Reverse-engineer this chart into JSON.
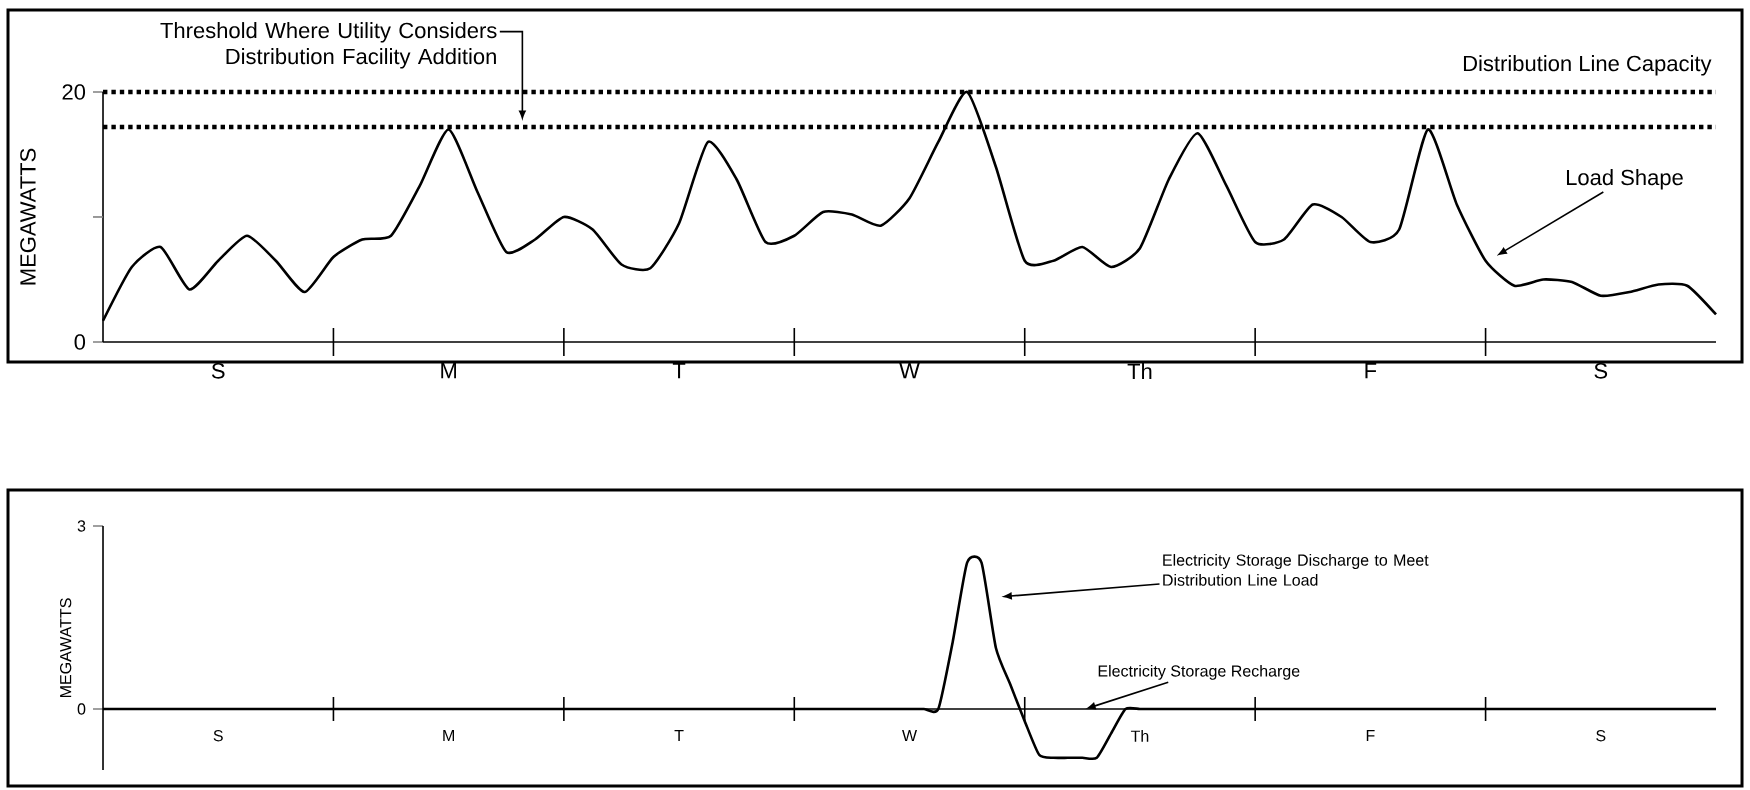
{
  "chart_data": [
    {
      "type": "line",
      "ylabel": "MEGAWATTS",
      "ylim": [
        0,
        20
      ],
      "categories": [
        null,
        null,
        null,
        null,
        "S",
        null,
        null,
        null,
        null,
        null,
        null,
        null,
        "M",
        null,
        null,
        null,
        null,
        null,
        null,
        null,
        "T",
        null,
        null,
        null,
        null,
        null,
        null,
        null,
        "W",
        null,
        null,
        null,
        null,
        null,
        null,
        null,
        "Th",
        null,
        null,
        null,
        null,
        null,
        null,
        null,
        "F",
        null,
        null,
        null,
        null,
        null,
        null,
        null,
        "S",
        null,
        null,
        null,
        null
      ],
      "yticks": [
        0,
        {
          "value": 10,
          "label": null
        },
        20
      ],
      "series": [
        {
          "color": "#000000",
          "values": [
            1.7,
            6.0,
            7.6,
            4.2,
            6.5,
            8.5,
            6.5,
            4.0,
            6.8,
            8.2,
            8.5,
            12.5,
            17.0,
            12.0,
            7.2,
            8.2,
            10.0,
            9.0,
            6.2,
            5.9,
            9.5,
            16.0,
            13.0,
            8.0,
            8.5,
            10.4,
            10.2,
            9.3,
            11.5,
            16.0,
            20.0,
            14.0,
            6.5,
            6.5,
            7.6,
            6.0,
            7.5,
            13.0,
            16.7,
            12.5,
            8.0,
            8.2,
            11.0,
            10.0,
            8.0,
            9.0,
            17.0,
            11.0,
            6.5,
            4.5,
            5.0,
            4.8,
            3.7,
            4.0,
            4.6,
            4.5,
            2.2
          ]
        }
      ],
      "ref_lines": [
        {
          "axis": "y",
          "value": 20,
          "label": "Distribution Line Capacity",
          "line_style": "dotted",
          "color": "#000000"
        },
        {
          "axis": "y",
          "value": 17.2,
          "label": "Threshold Where Utility Considers Distribution Facility Addition",
          "line_style": "dotted",
          "color": "#000000"
        }
      ],
      "annotations": [
        "Load Shape"
      ]
    },
    {
      "type": "line",
      "ylabel": "MEGAWATTS",
      "ylim": [
        -1,
        3
      ],
      "categories": [
        null,
        null,
        null,
        null,
        null,
        null,
        null,
        null,
        "S",
        null,
        null,
        null,
        null,
        null,
        null,
        null,
        null,
        null,
        null,
        null,
        null,
        null,
        null,
        null,
        "M",
        null,
        null,
        null,
        null,
        null,
        null,
        null,
        null,
        null,
        null,
        null,
        null,
        null,
        null,
        null,
        "T",
        null,
        null,
        null,
        null,
        null,
        null,
        null,
        null,
        null,
        null,
        null,
        null,
        null,
        null,
        null,
        "W",
        null,
        null,
        null,
        null,
        null,
        null,
        null,
        null,
        null,
        null,
        null,
        null,
        null,
        null,
        null,
        "Th",
        null,
        null,
        null,
        null,
        null,
        null,
        null,
        null,
        null,
        null,
        null,
        null,
        null,
        null,
        null,
        "F",
        null,
        null,
        null,
        null,
        null,
        null,
        null,
        null,
        null,
        null,
        null,
        null,
        null,
        null,
        null,
        "S",
        null,
        null,
        null,
        null,
        null,
        null,
        null,
        null
      ],
      "yticks": [
        0,
        3
      ],
      "series": [
        {
          "color": "#000000",
          "values": [
            0,
            0,
            0,
            0,
            0,
            0,
            0,
            0,
            0,
            0,
            0,
            0,
            0,
            0,
            0,
            0,
            0,
            0,
            0,
            0,
            0,
            0,
            0,
            0,
            0,
            0,
            0,
            0,
            0,
            0,
            0,
            0,
            0,
            0,
            0,
            0,
            0,
            0,
            0,
            0,
            0,
            0,
            0,
            0,
            0,
            0,
            0,
            0,
            0,
            0,
            0,
            0,
            0,
            0,
            0,
            0,
            0,
            0,
            0,
            1.1,
            2.4,
            2.4,
            1.0,
            0.4,
            -0.2,
            -0.75,
            -0.8,
            -0.8,
            -0.8,
            -0.8,
            -0.4,
            0,
            0,
            0,
            0,
            0,
            0,
            0,
            0,
            0,
            0,
            0,
            0,
            0,
            0,
            0,
            0,
            0,
            0,
            0,
            0,
            0,
            0,
            0,
            0,
            0,
            0,
            0,
            0,
            0,
            0,
            0,
            0,
            0,
            0,
            0,
            0,
            0,
            0,
            0,
            0,
            0,
            0
          ]
        }
      ],
      "annotations": [
        "Electricity Storage Discharge to Meet Distribution Line Load",
        "Electricity Storage Recharge"
      ]
    }
  ]
}
